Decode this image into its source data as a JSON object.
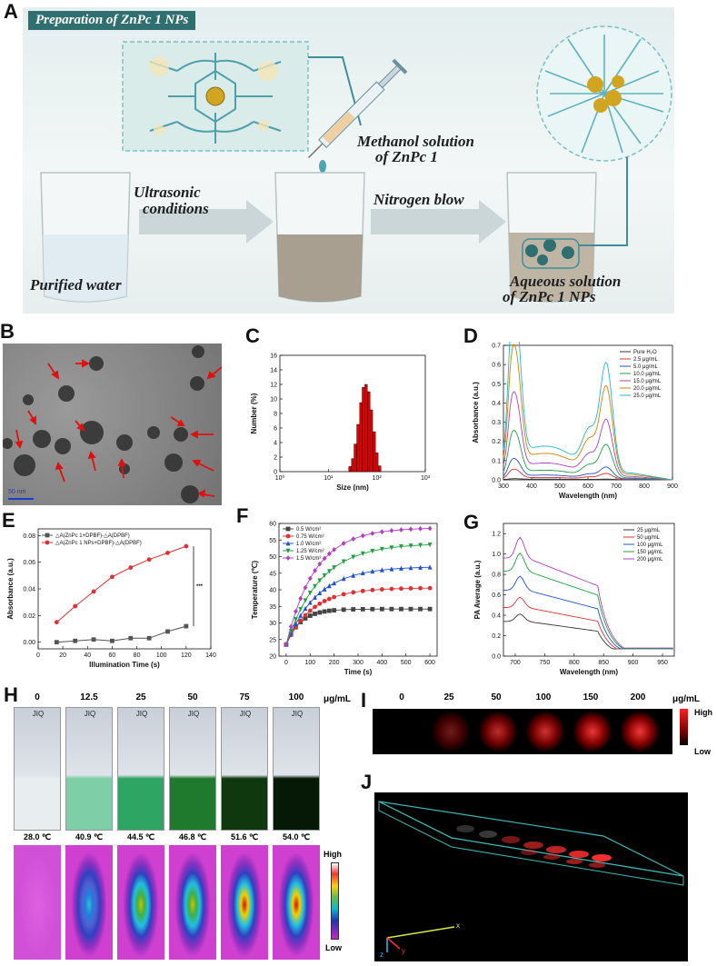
{
  "panelA": {
    "letter": "A",
    "title": "Preparation of ZnPc 1 NPs",
    "methanol_label": "Methanol solution of ZnPc 1",
    "methanol_line1": "Methanol solution",
    "methanol_line2": "of ZnPc 1",
    "arrow1_line1": "Ultrasonic",
    "arrow1_line2": "conditions",
    "arrow2": "Nitrogen blow",
    "beaker1": "Purified water",
    "beaker3_line1": "Aqueous solution",
    "beaker3_line2": "of ZnPc 1 NPs",
    "colors": {
      "banner": "#2f6f70",
      "panel_bg": "#dbeaea",
      "structure": "#5fa9b5"
    }
  },
  "panelB": {
    "letter": "B",
    "scalebar": "50 nm"
  },
  "panelC": {
    "letter": "C"
  },
  "panelD": {
    "letter": "D"
  },
  "panelE": {
    "letter": "E",
    "significance": "***"
  },
  "panelF": {
    "letter": "F"
  },
  "panelG": {
    "letter": "G"
  },
  "panelH": {
    "letter": "H",
    "unit": "μg/mL",
    "concs": [
      "0",
      "12.5",
      "25",
      "50",
      "75",
      "100"
    ],
    "cap_label": "JIQ",
    "temps": [
      "28.0 ℃",
      "40.9 ℃",
      "44.5 ℃",
      "46.8 ℃",
      "51.6 ℃",
      "54.0 ℃"
    ],
    "heat_levels": [
      0.0,
      0.38,
      0.55,
      0.66,
      0.85,
      1.0
    ],
    "scale_high": "High",
    "scale_low": "Low"
  },
  "panelI": {
    "letter": "I",
    "unit": "μg/mL",
    "concs": [
      "0",
      "25",
      "50",
      "100",
      "150",
      "200"
    ],
    "intensity": [
      0.0,
      0.45,
      0.75,
      0.82,
      0.92,
      0.95
    ],
    "scale_high": "High",
    "scale_low": "Low"
  },
  "panelJ": {
    "letter": "J",
    "axes": {
      "x": "x",
      "y": "y",
      "z": "z"
    }
  },
  "chart_data": [
    {
      "id": "C",
      "type": "bar",
      "xlabel": "Size (nm)",
      "ylabel": "Number (%)",
      "xscale": "log",
      "xlim": [
        1,
        1000
      ],
      "ylim": [
        0,
        16
      ],
      "xticks": [
        "10⁰",
        "10¹",
        "10²",
        "10³"
      ],
      "yticks": [
        0,
        2,
        4,
        6,
        8,
        10,
        12,
        14,
        16
      ],
      "x": [
        28,
        32,
        36,
        41,
        47,
        53,
        60,
        68,
        77,
        88,
        100,
        114
      ],
      "values": [
        0.7,
        1.8,
        3.8,
        6.5,
        9.5,
        11.6,
        12.0,
        11.0,
        8.5,
        5.5,
        2.6,
        0.8
      ],
      "color": "#e00000"
    },
    {
      "id": "D",
      "type": "line",
      "xlabel": "Wavelength (nm)",
      "ylabel": "Absorbance (a.u.)",
      "xlim": [
        300,
        900
      ],
      "ylim": [
        0,
        0.7
      ],
      "xticks": [
        300,
        400,
        500,
        600,
        700,
        800,
        900
      ],
      "yticks": [
        0.0,
        0.1,
        0.2,
        0.3,
        0.4,
        0.5,
        0.6,
        0.7
      ],
      "legend": "top-right",
      "series": [
        {
          "name": "Pure H₂O",
          "color": "#333333",
          "peakA": 0.003,
          "peakB": 0.003,
          "base": 0.003
        },
        {
          "name": "2.5 μg/mL",
          "color": "#e03030",
          "peakA": 0.04,
          "peakB": 0.03,
          "base": 0.01
        },
        {
          "name": "5.0 μg/mL",
          "color": "#2050d0",
          "peakA": 0.08,
          "peakB": 0.06,
          "base": 0.02
        },
        {
          "name": "10.0 μg/mL",
          "color": "#20a040",
          "peakA": 0.19,
          "peakB": 0.17,
          "base": 0.04
        },
        {
          "name": "15.0 μg/mL",
          "color": "#b040c0",
          "peakA": 0.34,
          "peakB": 0.29,
          "base": 0.07
        },
        {
          "name": "20.0 μg/mL",
          "color": "#d08000",
          "peakA": 0.52,
          "peakB": 0.45,
          "base": 0.11
        },
        {
          "name": "25.0 μg/mL",
          "color": "#20b8c8",
          "peakA": 0.69,
          "peakB": 0.56,
          "base": 0.14
        }
      ]
    },
    {
      "id": "E",
      "type": "line",
      "xlabel": "Illumination Time (s)",
      "ylabel": "Absorbance (a.u.)",
      "xlim": [
        0,
        140
      ],
      "ylim": [
        -0.005,
        0.085
      ],
      "xticks": [
        0,
        20,
        40,
        60,
        80,
        100,
        120,
        140
      ],
      "yticks": [
        0.0,
        0.02,
        0.04,
        0.06,
        0.08
      ],
      "legend": "top-left",
      "series": [
        {
          "name": "△A(ZnPc 1+DPBF)-△A(DPBF)",
          "color": "#555555",
          "marker": "square",
          "x": [
            15,
            30,
            45,
            60,
            75,
            90,
            105,
            120
          ],
          "values": [
            0.0,
            0.001,
            0.002,
            0.001,
            0.003,
            0.003,
            0.008,
            0.012
          ]
        },
        {
          "name": "△A(ZnPc 1 NPs+DPBF)-△A(DPBF)",
          "color": "#e03030",
          "marker": "circle",
          "x": [
            15,
            30,
            45,
            60,
            75,
            90,
            105,
            120
          ],
          "values": [
            0.015,
            0.027,
            0.038,
            0.049,
            0.056,
            0.062,
            0.067,
            0.072
          ]
        }
      ]
    },
    {
      "id": "F",
      "type": "line",
      "xlabel": "Time (s)",
      "ylabel": "Temperature (℃)",
      "xlim": [
        -30,
        630
      ],
      "ylim": [
        20,
        60
      ],
      "xticks": [
        0,
        100,
        200,
        300,
        400,
        500,
        600
      ],
      "yticks": [
        20,
        25,
        30,
        35,
        40,
        45,
        50,
        55,
        60
      ],
      "legend": "top-left",
      "series": [
        {
          "name": "0.5 W/cm²",
          "color": "#444444",
          "marker": "square",
          "end": 34.2,
          "tau": 60
        },
        {
          "name": "0.75 W/cm²",
          "color": "#e03030",
          "marker": "circle",
          "end": 40.5,
          "tau": 110
        },
        {
          "name": "1.0 W/cm²",
          "color": "#2050d0",
          "marker": "triangle",
          "end": 46.8,
          "tau": 130
        },
        {
          "name": "1.25 W/cm²",
          "color": "#20a040",
          "marker": "triangle-down",
          "end": 53.6,
          "tau": 140
        },
        {
          "name": "1.5 W/cm²",
          "color": "#b040c0",
          "marker": "diamond",
          "end": 58.5,
          "tau": 120
        }
      ],
      "x": [
        0,
        20,
        40,
        60,
        80,
        100,
        120,
        140,
        160,
        180,
        200,
        240,
        280,
        320,
        360,
        400,
        440,
        480,
        520,
        560,
        600
      ],
      "start": 23.5
    },
    {
      "id": "G",
      "type": "line",
      "xlabel": "Wavelength (nm)",
      "ylabel": "PA Average (a.u.)",
      "xlim": [
        680,
        970
      ],
      "ylim": [
        0,
        1.3
      ],
      "xticks": [
        700,
        750,
        800,
        850,
        900,
        950
      ],
      "yticks": [
        0.0,
        0.2,
        0.4,
        0.6,
        0.8,
        1.0,
        1.2
      ],
      "legend": "top-right",
      "series": [
        {
          "name": "25 μg/mL",
          "color": "#333333",
          "scale": 0.4
        },
        {
          "name": "50 μg/mL",
          "color": "#e03030",
          "scale": 0.56
        },
        {
          "name": "100 μg/mL",
          "color": "#2050d0",
          "scale": 0.76
        },
        {
          "name": "150 μg/mL",
          "color": "#20a040",
          "scale": 0.98
        },
        {
          "name": "200 μg/mL",
          "color": "#b040c0",
          "scale": 1.13
        }
      ]
    }
  ]
}
